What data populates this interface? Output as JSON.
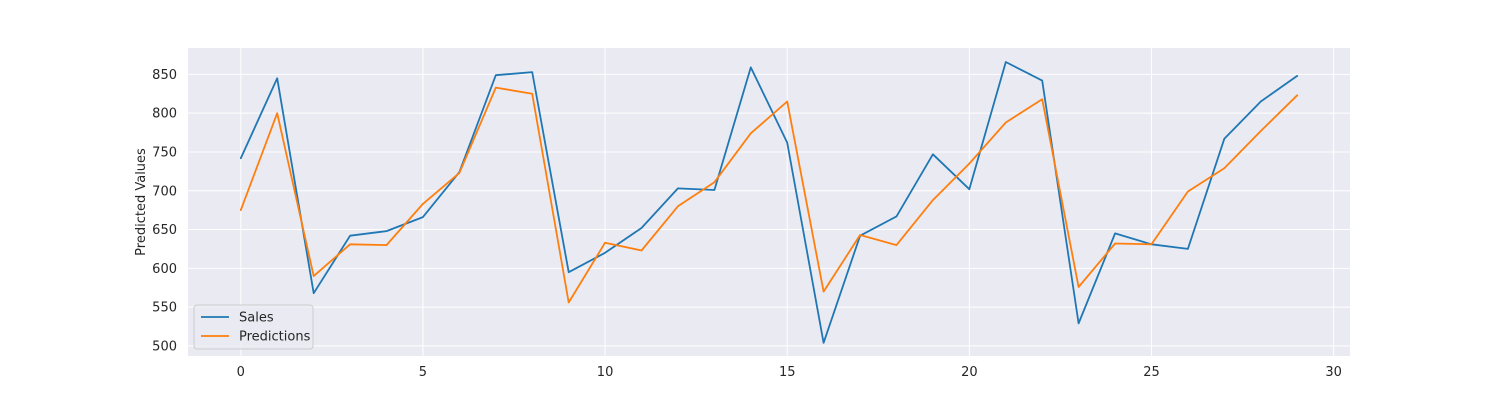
{
  "chart_data": {
    "type": "line",
    "title": "",
    "xlabel": "",
    "ylabel": "Predicted Values",
    "x": [
      0,
      1,
      2,
      3,
      4,
      5,
      6,
      7,
      8,
      9,
      10,
      11,
      12,
      13,
      14,
      15,
      16,
      17,
      18,
      19,
      20,
      21,
      22,
      23,
      24,
      25,
      26,
      27,
      28,
      29
    ],
    "xlim": [
      -1.45,
      30.45
    ],
    "ylim": [
      487,
      884
    ],
    "xticks": [
      0,
      5,
      10,
      15,
      20,
      25,
      30
    ],
    "yticks": [
      500,
      550,
      600,
      650,
      700,
      750,
      800,
      850
    ],
    "grid": true,
    "legend_position": "lower-left",
    "series": [
      {
        "name": "Sales",
        "color": "#1f77b4",
        "values": [
          742,
          845,
          568,
          642,
          648,
          666,
          724,
          849,
          853,
          595,
          620,
          652,
          703,
          701,
          859,
          762,
          504,
          642,
          667,
          747,
          702,
          866,
          842,
          529,
          645,
          631,
          625,
          767,
          815,
          848
        ]
      },
      {
        "name": "Predictions",
        "color": "#ff7f0e",
        "values": [
          675,
          800,
          590,
          631,
          630,
          683,
          723,
          833,
          825,
          556,
          633,
          623,
          680,
          711,
          774,
          815,
          570,
          643,
          630,
          688,
          735,
          788,
          818,
          576,
          632,
          631,
          699,
          729,
          777,
          823
        ]
      }
    ]
  }
}
